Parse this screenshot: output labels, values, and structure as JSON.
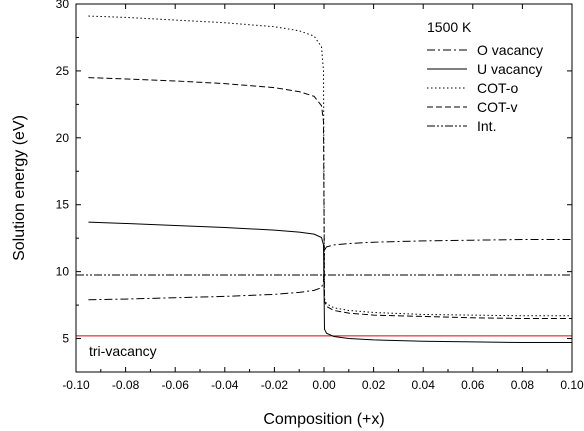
{
  "chart_data": {
    "type": "line",
    "title": "",
    "xlabel": "Composition (+x)",
    "ylabel": "Solution energy (eV)",
    "xlim": [
      -0.1,
      0.1
    ],
    "ylim": [
      2.5,
      30
    ],
    "x_ticks": [
      "-0.10",
      "-0.08",
      "-0.06",
      "-0.04",
      "-0.02",
      "0.00",
      "0.02",
      "0.04",
      "0.06",
      "0.08",
      "0.10"
    ],
    "y_ticks": [
      "5",
      "10",
      "15",
      "20",
      "25",
      "30"
    ],
    "grid": false,
    "legend_title": "1500 K",
    "legend_position": "top-right",
    "annotation": "tri-vacancy",
    "reference_line": {
      "y": 5.2,
      "color": "#e00000"
    },
    "series": [
      {
        "name": "O vacancy",
        "dash": "dashdot",
        "left": {
          "x": [
            -0.095,
            -0.08,
            -0.06,
            -0.04,
            -0.02,
            -0.01,
            -0.004,
            -0.001,
            -0.0002
          ],
          "y": [
            7.9,
            7.95,
            8.05,
            8.15,
            8.3,
            8.45,
            8.6,
            8.8,
            9.3
          ]
        },
        "right": {
          "x": [
            0.0002,
            0.001,
            0.004,
            0.01,
            0.02,
            0.04,
            0.06,
            0.08,
            0.1
          ],
          "y": [
            11.6,
            11.85,
            12.0,
            12.1,
            12.2,
            12.3,
            12.35,
            12.4,
            12.4
          ]
        }
      },
      {
        "name": "U vacancy",
        "dash": "solid",
        "left": {
          "x": [
            -0.095,
            -0.08,
            -0.06,
            -0.04,
            -0.02,
            -0.01,
            -0.004,
            -0.001,
            -0.0002
          ],
          "y": [
            13.7,
            13.6,
            13.45,
            13.3,
            13.1,
            12.95,
            12.8,
            12.55,
            12.0
          ]
        },
        "right": {
          "x": [
            0.0002,
            0.001,
            0.004,
            0.01,
            0.02,
            0.04,
            0.06,
            0.08,
            0.1
          ],
          "y": [
            5.7,
            5.4,
            5.15,
            5.0,
            4.9,
            4.8,
            4.75,
            4.7,
            4.7
          ]
        }
      },
      {
        "name": "COT-o",
        "dash": "dotted",
        "left": {
          "x": [
            -0.095,
            -0.08,
            -0.06,
            -0.04,
            -0.02,
            -0.01,
            -0.004,
            -0.001,
            -0.0002
          ],
          "y": [
            29.1,
            29.0,
            28.8,
            28.6,
            28.3,
            28.0,
            27.6,
            26.8,
            25.0
          ]
        },
        "right": {
          "x": [
            0.0002,
            0.001,
            0.004,
            0.01,
            0.02,
            0.04,
            0.06,
            0.08,
            0.1
          ],
          "y": [
            8.0,
            7.6,
            7.3,
            7.1,
            6.95,
            6.8,
            6.75,
            6.7,
            6.7
          ]
        }
      },
      {
        "name": "COT-v",
        "dash": "dashed",
        "left": {
          "x": [
            -0.095,
            -0.08,
            -0.06,
            -0.04,
            -0.02,
            -0.01,
            -0.004,
            -0.001,
            -0.0002
          ],
          "y": [
            24.5,
            24.4,
            24.25,
            24.05,
            23.75,
            23.45,
            23.1,
            22.4,
            21.2
          ]
        },
        "right": {
          "x": [
            0.0002,
            0.001,
            0.004,
            0.01,
            0.02,
            0.04,
            0.06,
            0.08,
            0.1
          ],
          "y": [
            7.8,
            7.4,
            7.1,
            6.9,
            6.75,
            6.65,
            6.55,
            6.5,
            6.5
          ]
        }
      },
      {
        "name": "Int.",
        "dash": "dashdotdot",
        "x": [
          -0.1,
          0.1
        ],
        "y": [
          9.75,
          9.75
        ]
      }
    ]
  }
}
